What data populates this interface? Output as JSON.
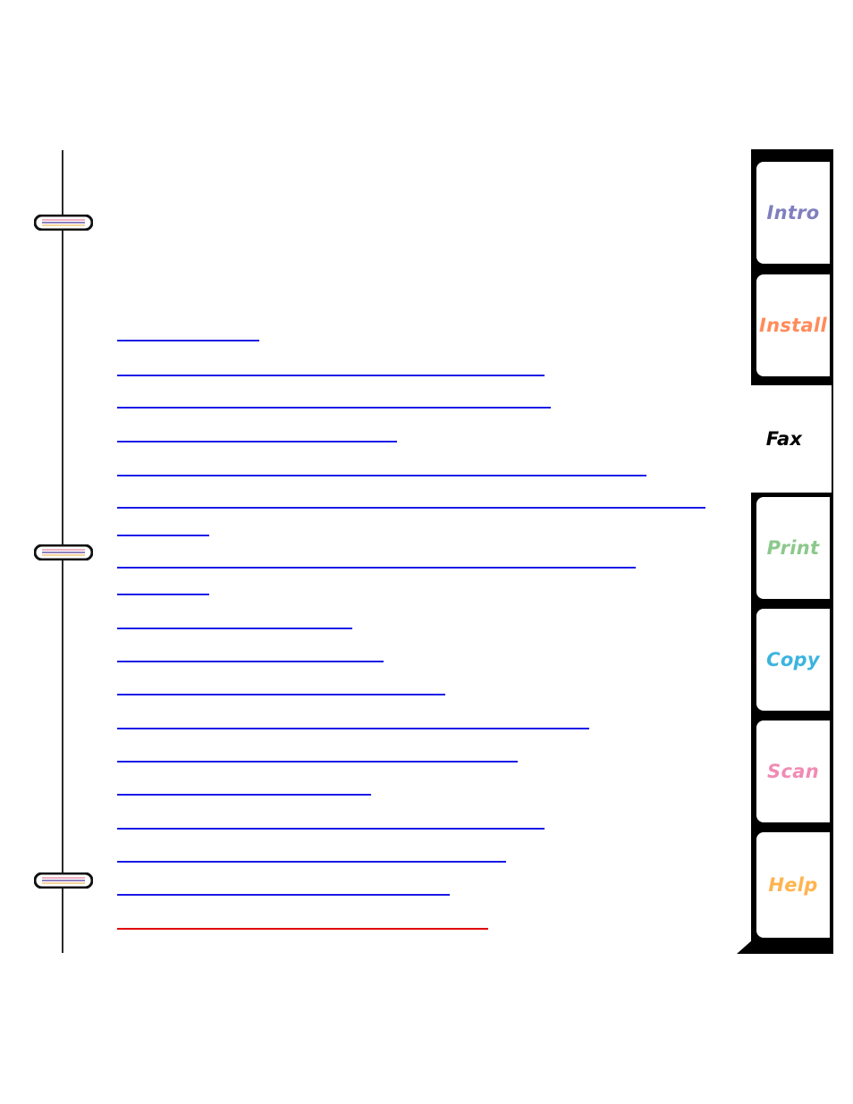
{
  "tabs": [
    {
      "label": "Intro",
      "color": "#7f7fbf"
    },
    {
      "label": "Install",
      "color": "#ff8c5a"
    },
    {
      "label": "Fax",
      "color": "#000000"
    },
    {
      "label": "Print",
      "color": "#8cc88c"
    },
    {
      "label": "Copy",
      "color": "#3cb4e0"
    },
    {
      "label": "Scan",
      "color": "#f08cb4"
    },
    {
      "label": "Help",
      "color": "#ffb450"
    }
  ],
  "active_tab": "Fax",
  "colors": {
    "link": "#1a1ae6",
    "visited_link": "#e00000",
    "binder": "#2a2a2a",
    "ring_stripe_top": "#f0b0c0",
    "ring_stripe_mid": "#9080c0"
  }
}
